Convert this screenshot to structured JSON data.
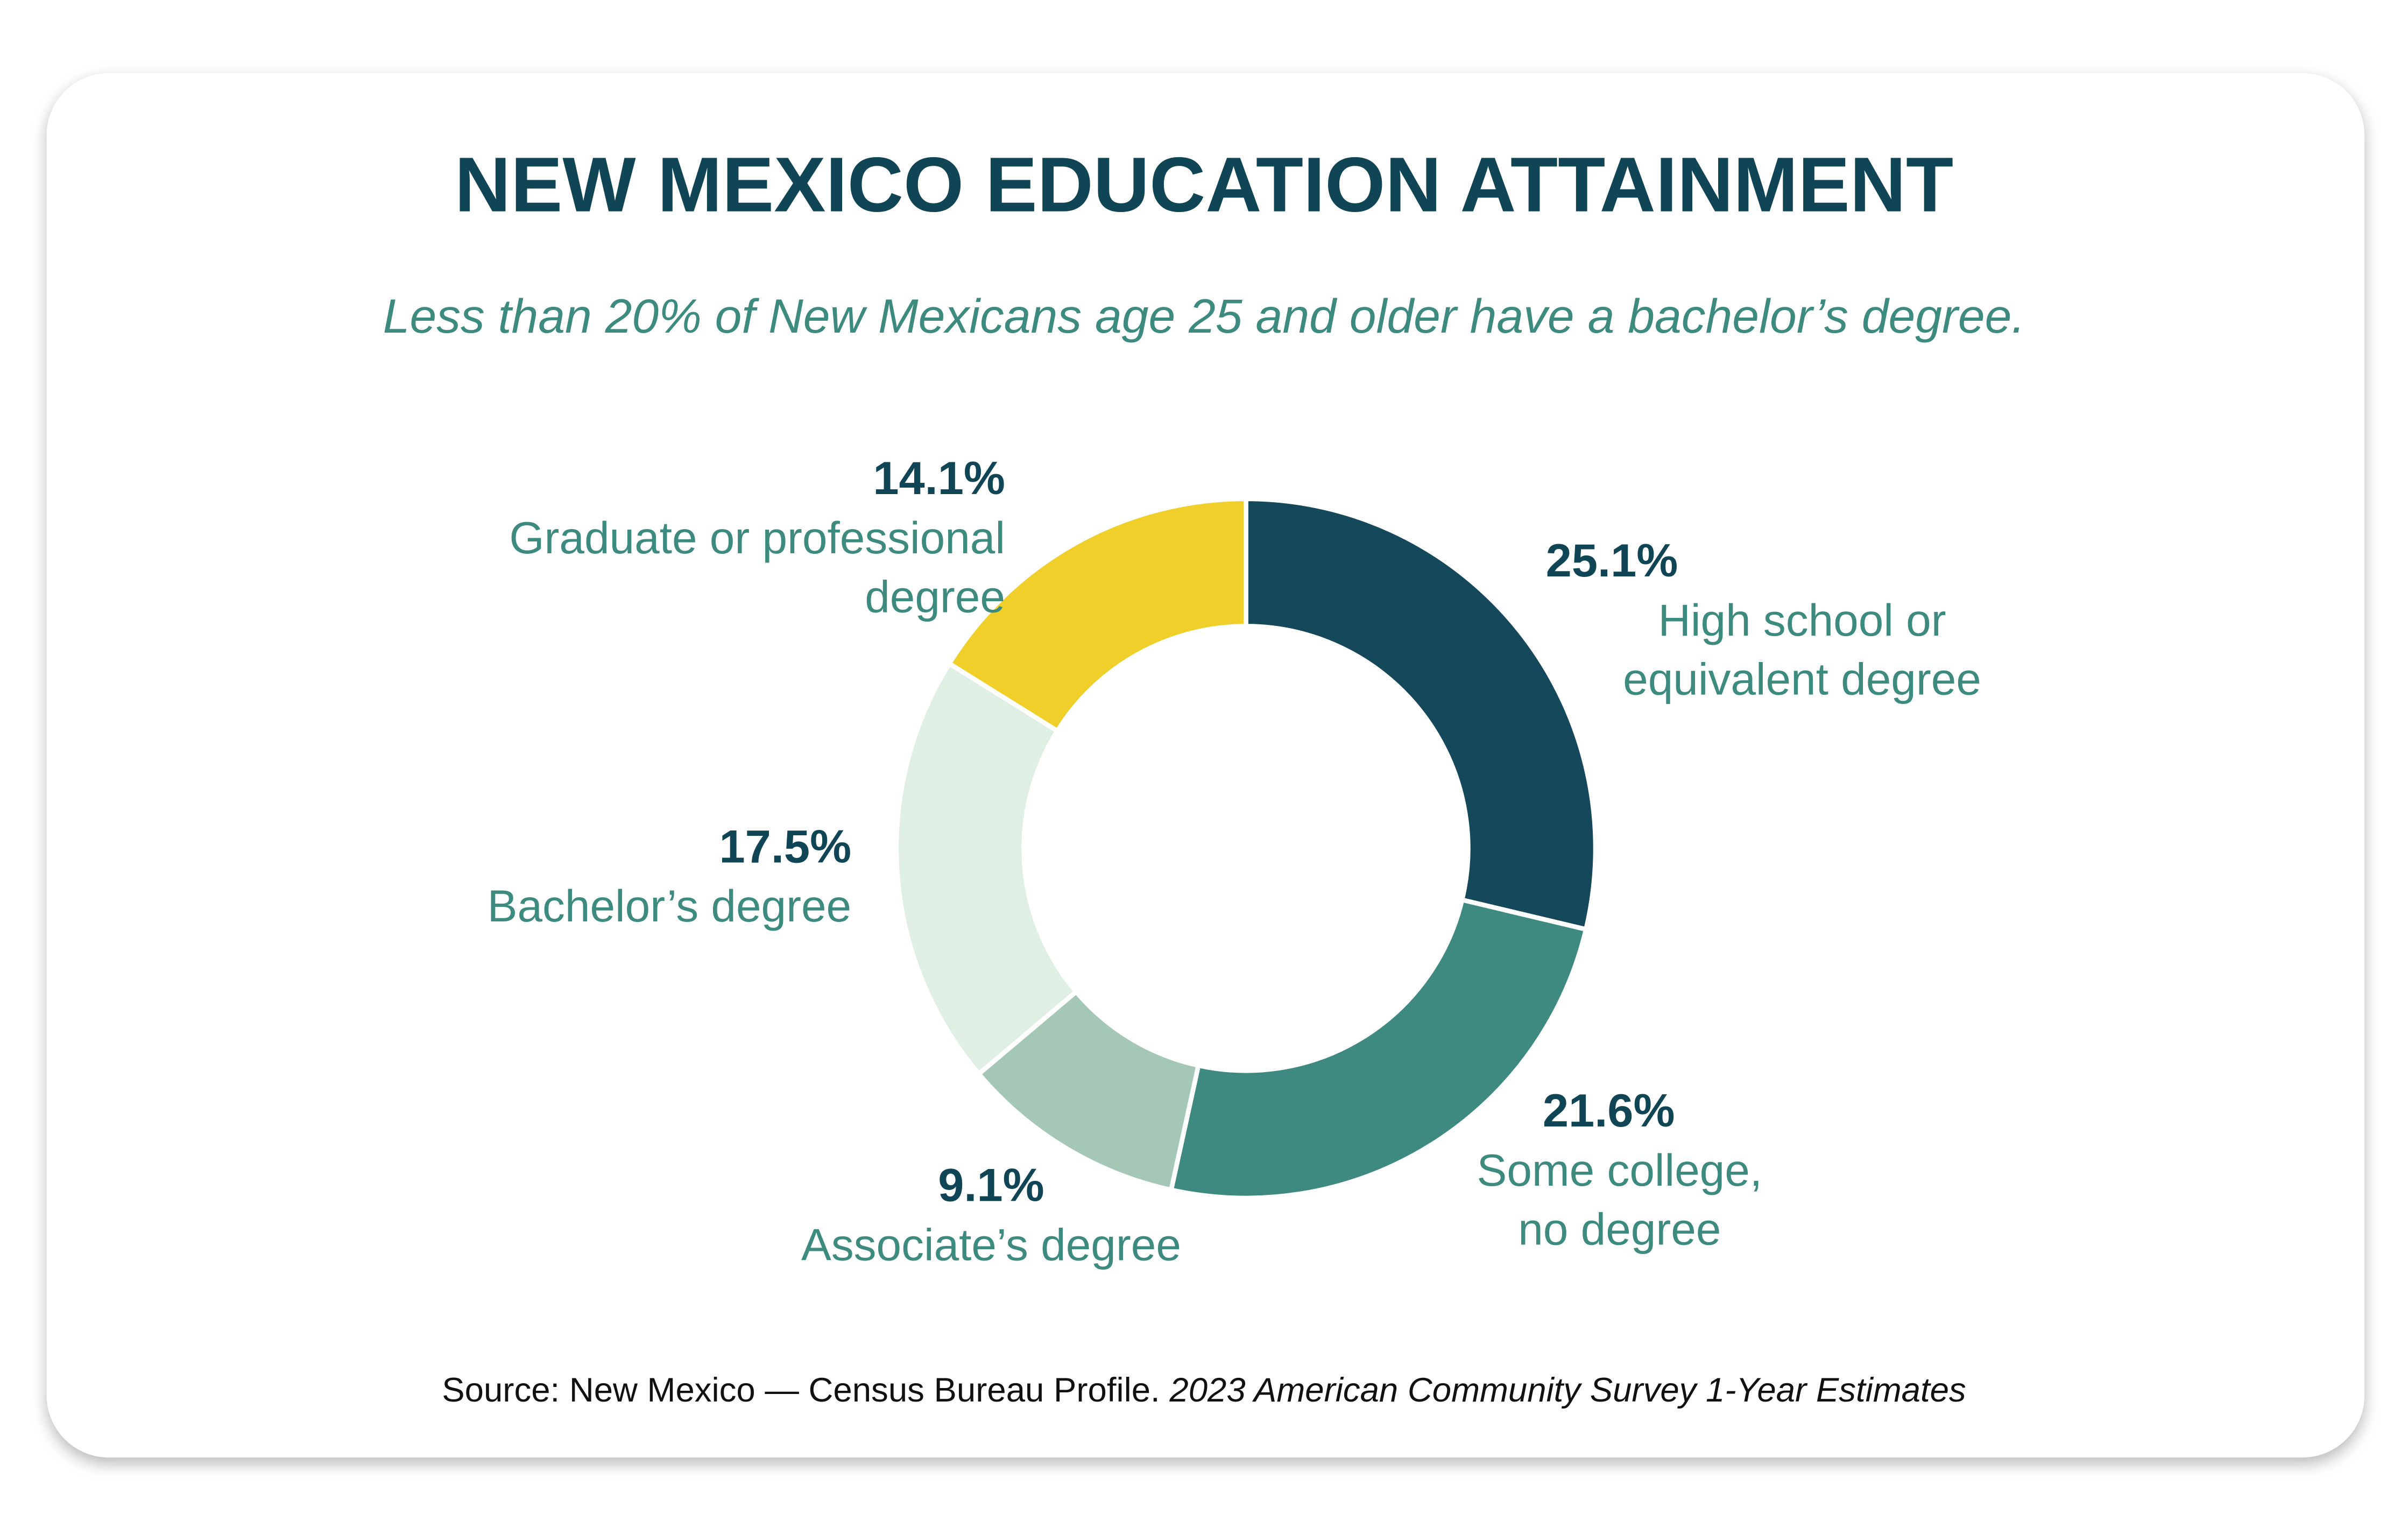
{
  "chart_data": {
    "type": "donut",
    "title": "NEW MEXICO EDUCATION ATTAINMENT",
    "subtitle": "Less than 20% of New Mexicans age 25 and older have a bachelor’s degree.",
    "categories": [
      "High school or\nequivalent degree",
      "Some college,\nno degree",
      "Associate’s degree",
      "Bachelor’s degree",
      "Graduate or professional degree"
    ],
    "values": [
      25.1,
      21.6,
      9.1,
      17.5,
      14.1
    ],
    "value_labels": [
      "25.1%",
      "21.6%",
      "9.1%",
      "17.5%",
      "14.1%"
    ],
    "colors": [
      "#14485a",
      "#3f8a80",
      "#a4c8b5",
      "#e0efe4",
      "#f0cf2a"
    ],
    "source": "Source: New Mexico — Census Bureau Profile.",
    "source_note": "2023 American Community Survey 1-Year Estimates"
  }
}
